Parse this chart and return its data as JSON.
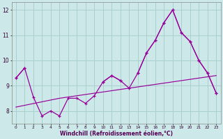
{
  "xlabel": "Windchill (Refroidissement éolien,°C)",
  "x": [
    0,
    1,
    2,
    3,
    4,
    5,
    6,
    7,
    8,
    9,
    10,
    11,
    12,
    13,
    14,
    15,
    16,
    17,
    18,
    19,
    20,
    21,
    22,
    23
  ],
  "line_main": [
    9.3,
    9.7,
    8.55,
    7.8,
    8.0,
    7.8,
    8.5,
    8.5,
    8.3,
    8.6,
    9.15,
    9.4,
    9.2,
    8.9,
    9.5,
    10.3,
    10.8,
    11.5,
    12.0,
    11.1,
    10.75,
    10.0,
    9.5,
    8.7
  ],
  "line_upper": [
    9.3,
    9.7,
    null,
    null,
    null,
    null,
    null,
    null,
    null,
    null,
    9.15,
    9.4,
    9.2,
    null,
    9.5,
    10.3,
    10.8,
    11.5,
    12.0,
    11.1,
    10.75,
    10.0,
    9.5,
    8.7
  ],
  "trend_low": [
    8.15,
    8.22,
    8.29,
    8.36,
    8.43,
    8.5,
    8.55,
    8.6,
    8.65,
    8.7,
    8.75,
    8.8,
    8.85,
    8.9,
    8.95,
    9.0,
    9.05,
    9.1,
    9.15,
    9.2,
    9.25,
    9.3,
    9.35,
    9.4
  ],
  "line_color": "#990099",
  "bg_color": "#cce8e8",
  "grid_color": "#aacfcf",
  "ylim": [
    7.5,
    12.3
  ],
  "yticks": [
    8,
    9,
    10,
    11,
    12
  ],
  "xlim": [
    -0.5,
    23.5
  ]
}
